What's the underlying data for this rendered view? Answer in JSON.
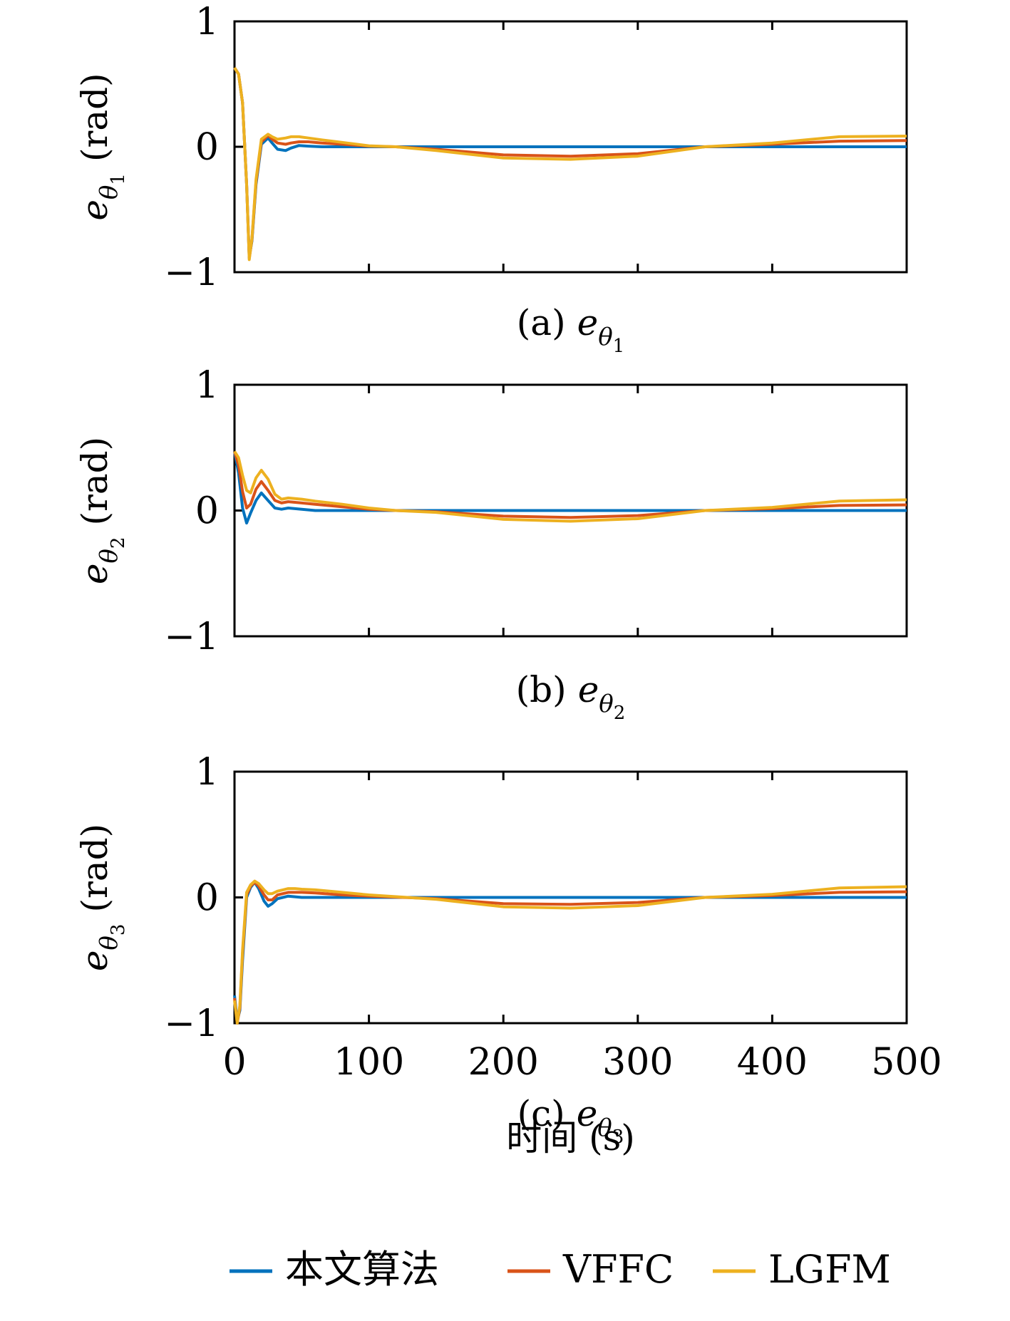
{
  "colors": {
    "series_blue": "#0072BD",
    "series_red": "#D95319",
    "series_yellow": "#EDB120"
  },
  "legend": [
    "本文算法",
    "VFFC",
    "LGFM"
  ],
  "chart_data": [
    {
      "type": "line",
      "caption": "(a) e_θ1",
      "caption_prefix": "(a)",
      "caption_var": "e",
      "caption_sub": "θ",
      "caption_subsub": "1",
      "ylabel_var": "e",
      "ylabel_sub": "θ",
      "ylabel_subsub": "1",
      "ylabel_unit": "(rad)",
      "xlabel": "",
      "xlim": [
        0,
        500
      ],
      "ylim": [
        -1,
        1
      ],
      "yticks": [
        -1,
        0,
        1
      ],
      "ytick_labels": [
        "−1",
        "0",
        "1"
      ],
      "xticks": [
        0,
        100,
        200,
        300,
        400,
        500
      ],
      "xtick_labels": [],
      "grid": false,
      "series": [
        {
          "name": "本文算法",
          "color": "#0072BD",
          "x": [
            0,
            3,
            6,
            9,
            11,
            13,
            16,
            20,
            25,
            28,
            32,
            38,
            42,
            48,
            55,
            65,
            80,
            100,
            120,
            150,
            200,
            250,
            300,
            350,
            400,
            450,
            500
          ],
          "y": [
            0.63,
            0.58,
            0.35,
            -0.3,
            -0.88,
            -0.75,
            -0.3,
            0.02,
            0.07,
            0.03,
            -0.02,
            -0.03,
            -0.01,
            0.01,
            0.005,
            0,
            0,
            0,
            0,
            0,
            0,
            0,
            0,
            0,
            0,
            0,
            0
          ]
        },
        {
          "name": "VFFC",
          "color": "#D95319",
          "x": [
            0,
            3,
            6,
            9,
            11,
            13,
            16,
            20,
            25,
            28,
            32,
            38,
            42,
            48,
            55,
            65,
            80,
            100,
            120,
            150,
            200,
            250,
            300,
            350,
            400,
            450,
            500
          ],
          "y": [
            0.63,
            0.58,
            0.35,
            -0.3,
            -0.89,
            -0.74,
            -0.28,
            0.04,
            0.09,
            0.06,
            0.03,
            0.02,
            0.03,
            0.04,
            0.04,
            0.03,
            0.02,
            0.005,
            0,
            -0.02,
            -0.065,
            -0.075,
            -0.055,
            0,
            0.02,
            0.045,
            0.05
          ]
        },
        {
          "name": "LGFM",
          "color": "#EDB120",
          "x": [
            0,
            3,
            6,
            9,
            11,
            13,
            16,
            20,
            25,
            28,
            32,
            38,
            42,
            48,
            55,
            65,
            80,
            100,
            120,
            150,
            200,
            250,
            300,
            350,
            400,
            450,
            500
          ],
          "y": [
            0.63,
            0.58,
            0.35,
            -0.3,
            -0.9,
            -0.73,
            -0.26,
            0.06,
            0.1,
            0.08,
            0.06,
            0.07,
            0.08,
            0.08,
            0.07,
            0.055,
            0.035,
            0.008,
            0,
            -0.03,
            -0.09,
            -0.1,
            -0.075,
            0,
            0.03,
            0.08,
            0.085
          ]
        }
      ]
    },
    {
      "type": "line",
      "caption": "(b) e_θ2",
      "caption_prefix": "(b)",
      "caption_var": "e",
      "caption_sub": "θ",
      "caption_subsub": "2",
      "ylabel_var": "e",
      "ylabel_sub": "θ",
      "ylabel_subsub": "2",
      "ylabel_unit": "(rad)",
      "xlabel": "",
      "xlim": [
        0,
        500
      ],
      "ylim": [
        -1,
        1
      ],
      "yticks": [
        -1,
        0,
        1
      ],
      "ytick_labels": [
        "−1",
        "0",
        "1"
      ],
      "xticks": [
        0,
        100,
        200,
        300,
        400,
        500
      ],
      "xtick_labels": [],
      "grid": false,
      "series": [
        {
          "name": "本文算法",
          "color": "#0072BD",
          "x": [
            0,
            3,
            6,
            9,
            12,
            16,
            20,
            25,
            30,
            35,
            40,
            50,
            60,
            80,
            100,
            120,
            150,
            200,
            250,
            300,
            350,
            400,
            450,
            500
          ],
          "y": [
            0.47,
            0.3,
            0.02,
            -0.1,
            -0.02,
            0.08,
            0.14,
            0.08,
            0.02,
            0.01,
            0.02,
            0.01,
            0,
            0,
            0,
            0,
            0,
            0,
            0,
            0,
            0,
            0,
            0,
            0
          ]
        },
        {
          "name": "VFFC",
          "color": "#D95319",
          "x": [
            0,
            3,
            6,
            9,
            12,
            16,
            20,
            25,
            30,
            35,
            40,
            50,
            60,
            80,
            100,
            120,
            150,
            200,
            250,
            300,
            350,
            400,
            450,
            500
          ],
          "y": [
            0.47,
            0.36,
            0.15,
            0.02,
            0.05,
            0.17,
            0.23,
            0.16,
            0.08,
            0.06,
            0.07,
            0.06,
            0.05,
            0.03,
            0.01,
            0,
            -0.01,
            -0.045,
            -0.055,
            -0.04,
            0,
            0.015,
            0.04,
            0.045
          ]
        },
        {
          "name": "LGFM",
          "color": "#EDB120",
          "x": [
            0,
            3,
            6,
            9,
            12,
            16,
            20,
            25,
            30,
            35,
            40,
            50,
            60,
            80,
            100,
            120,
            150,
            200,
            250,
            300,
            350,
            400,
            450,
            500
          ],
          "y": [
            0.47,
            0.42,
            0.28,
            0.16,
            0.14,
            0.26,
            0.32,
            0.25,
            0.13,
            0.09,
            0.1,
            0.09,
            0.075,
            0.05,
            0.02,
            0,
            -0.015,
            -0.07,
            -0.085,
            -0.065,
            0,
            0.025,
            0.075,
            0.085
          ]
        }
      ]
    },
    {
      "type": "line",
      "caption": "(c) e_θ3",
      "caption_prefix": "(c)",
      "caption_var": "e",
      "caption_sub": "θ",
      "caption_subsub": "3",
      "ylabel_var": "e",
      "ylabel_sub": "θ",
      "ylabel_subsub": "3",
      "ylabel_unit": "(rad)",
      "xlabel": "时间 (s)",
      "xlim": [
        0,
        500
      ],
      "ylim": [
        -1,
        1
      ],
      "yticks": [
        -1,
        0,
        1
      ],
      "ytick_labels": [
        "−1",
        "0",
        "1"
      ],
      "xticks": [
        0,
        100,
        200,
        300,
        400,
        500
      ],
      "xtick_labels": [
        "0",
        "100",
        "200",
        "300",
        "400",
        "500"
      ],
      "grid": false,
      "series": [
        {
          "name": "本文算法",
          "color": "#0072BD",
          "x": [
            0,
            2,
            4,
            6,
            9,
            12,
            15,
            18,
            22,
            25,
            28,
            32,
            36,
            40,
            45,
            50,
            60,
            80,
            100,
            150,
            200,
            250,
            300,
            350,
            400,
            450,
            500
          ],
          "y": [
            -0.78,
            -0.98,
            -0.9,
            -0.5,
            0.0,
            0.08,
            0.12,
            0.07,
            -0.03,
            -0.07,
            -0.05,
            -0.01,
            0.0,
            0.01,
            0.005,
            0,
            0,
            0,
            0,
            0,
            0,
            0,
            0,
            0,
            0,
            0,
            0
          ]
        },
        {
          "name": "VFFC",
          "color": "#D95319",
          "x": [
            0,
            2,
            4,
            6,
            9,
            12,
            15,
            18,
            22,
            25,
            28,
            32,
            36,
            40,
            45,
            50,
            60,
            80,
            100,
            150,
            200,
            250,
            300,
            350,
            400,
            450,
            500
          ],
          "y": [
            -0.8,
            -1.0,
            -0.88,
            -0.45,
            0.02,
            0.09,
            0.12,
            0.09,
            0.02,
            -0.02,
            -0.02,
            0.02,
            0.03,
            0.04,
            0.04,
            0.04,
            0.035,
            0.02,
            0.01,
            -0.01,
            -0.05,
            -0.055,
            -0.04,
            0,
            0.015,
            0.04,
            0.045
          ]
        },
        {
          "name": "LGFM",
          "color": "#EDB120",
          "x": [
            0,
            2,
            4,
            6,
            9,
            12,
            15,
            18,
            22,
            25,
            28,
            32,
            36,
            40,
            45,
            50,
            60,
            80,
            100,
            150,
            200,
            250,
            300,
            350,
            400,
            450,
            500
          ],
          "y": [
            -0.82,
            -1.0,
            -0.86,
            -0.42,
            0.04,
            0.1,
            0.13,
            0.11,
            0.06,
            0.03,
            0.03,
            0.05,
            0.06,
            0.07,
            0.07,
            0.065,
            0.06,
            0.04,
            0.02,
            -0.015,
            -0.075,
            -0.085,
            -0.065,
            0,
            0.025,
            0.075,
            0.085
          ]
        }
      ]
    }
  ]
}
